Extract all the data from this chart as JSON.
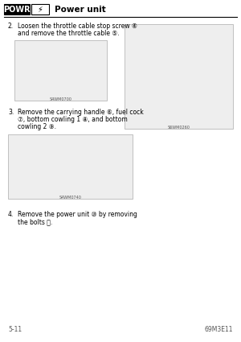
{
  "bg_color": "#ffffff",
  "header_box_text": "POWR",
  "header_label": "Power unit",
  "page_number": "5-11",
  "page_code": "69M3E11",
  "instructions": [
    {
      "number": "2.",
      "lines": [
        "Loosen the throttle cable stop screw ④",
        "and remove the throttle cable ⑤."
      ]
    },
    {
      "number": "3.",
      "lines": [
        "Remove the carrying handle ⑥, fuel cock",
        "⑦, bottom cowling 1 ⑧, and bottom",
        "cowling 2 ⑨."
      ]
    },
    {
      "number": "4.",
      "lines": [
        "Remove the power unit ⑩ by removing",
        "the bolts ⑪."
      ]
    }
  ],
  "diag1_code": "S4WM0700",
  "diag2_code": "S6WM0260",
  "diag3_code": "S4WM0740",
  "font_size": 5.5,
  "header_font_size": 7.5,
  "num_font_size": 5.5
}
